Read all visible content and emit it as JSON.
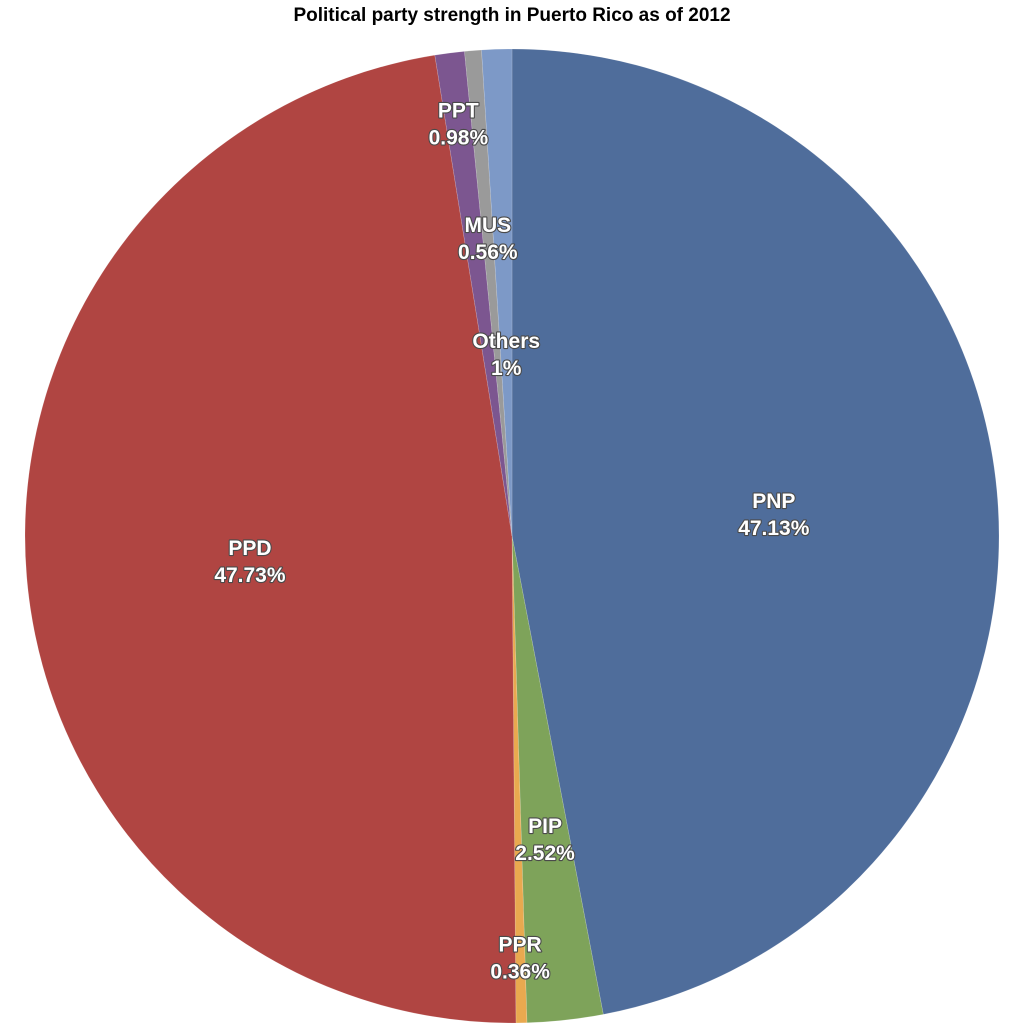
{
  "chart_data": {
    "type": "pie",
    "title": "Political party strength in Puerto Rico as of 2012",
    "slices": [
      {
        "name": "PNP",
        "value": 47.13,
        "label": "47.13%",
        "color": "#4f6d9b"
      },
      {
        "name": "PIP",
        "value": 2.52,
        "label": "2.52%",
        "color": "#7ea35a"
      },
      {
        "name": "PPR",
        "value": 0.36,
        "label": "0.36%",
        "color": "#e9a94f"
      },
      {
        "name": "PPD",
        "value": 47.73,
        "label": "47.73%",
        "color": "#b04542"
      },
      {
        "name": "PPT",
        "value": 0.98,
        "label": "0.98%",
        "color": "#7c5690"
      },
      {
        "name": "MUS",
        "value": 0.56,
        "label": "0.56%",
        "color": "#9a9a9a"
      },
      {
        "name": "Others",
        "value": 1,
        "label": "1%",
        "color": "#7d99c7"
      }
    ],
    "start_angle": "top",
    "direction": "clockwise",
    "legend": "none"
  }
}
